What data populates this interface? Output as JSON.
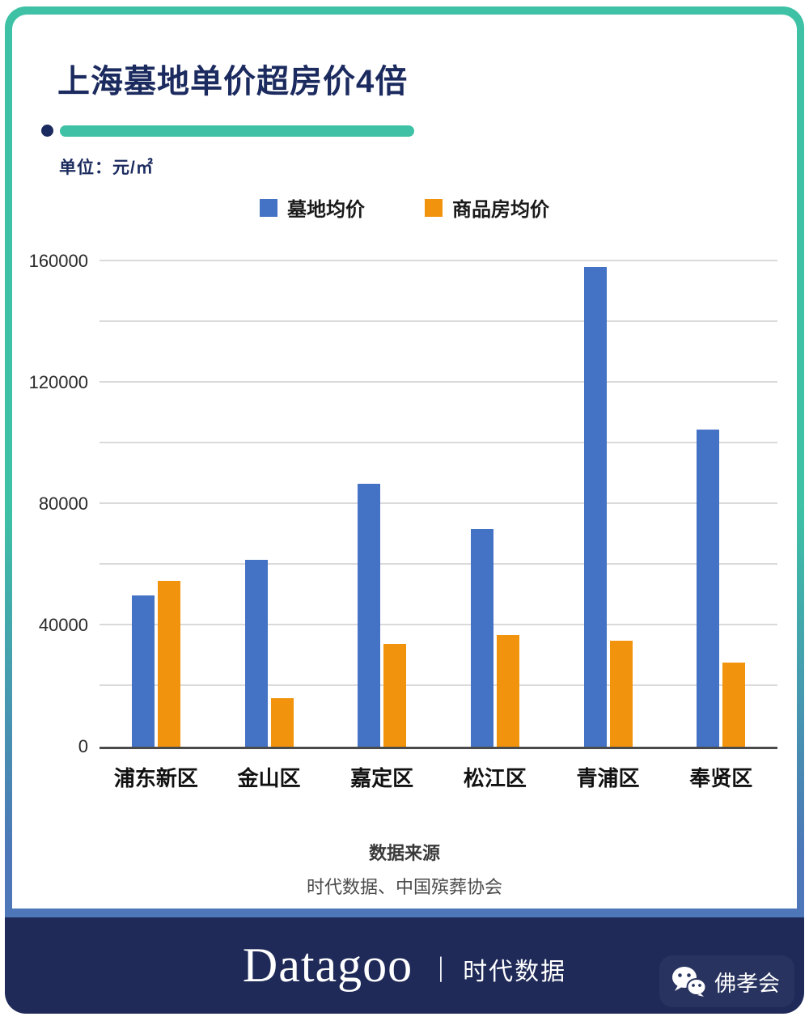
{
  "header": {
    "title": "上海墓地单价超房价4倍",
    "unit_label": "单位：元/㎡"
  },
  "chart_data": {
    "type": "bar",
    "title": "上海墓地单价超房价4倍",
    "unit": "元/㎡",
    "categories": [
      "浦东新区",
      "金山区",
      "嘉定区",
      "松江区",
      "青浦区",
      "奉贤区"
    ],
    "series": [
      {
        "name": "墓地均价",
        "color": "#4472C4",
        "values": [
          50000,
          62000,
          87000,
          72000,
          159000,
          105000
        ]
      },
      {
        "name": "商品房均价",
        "color": "#F2930D",
        "values": [
          55000,
          16000,
          34000,
          37000,
          35000,
          28000
        ]
      }
    ],
    "ylim": [
      0,
      160000
    ],
    "ytick_interval": 20000,
    "ytick_labels": [
      "0",
      "40000",
      "80000",
      "120000",
      "160000"
    ],
    "ytick_label_values": [
      0,
      40000,
      80000,
      120000,
      160000
    ],
    "grid": true,
    "legend_position": "top"
  },
  "source": {
    "heading": "数据来源",
    "text": "时代数据、中国殡葬协会"
  },
  "footer": {
    "brand": "Datagoo",
    "separator": "丨",
    "brand_cn": "时代数据",
    "wechat_account": "佛孝会"
  },
  "colors": {
    "accent_teal": "#3EC1A5",
    "navy": "#1C2B5F",
    "bar_blue": "#4472C4",
    "bar_orange": "#F2930D",
    "footer_navy": "#1F2A58",
    "frame_bottom_blue": "#4D77B8"
  }
}
